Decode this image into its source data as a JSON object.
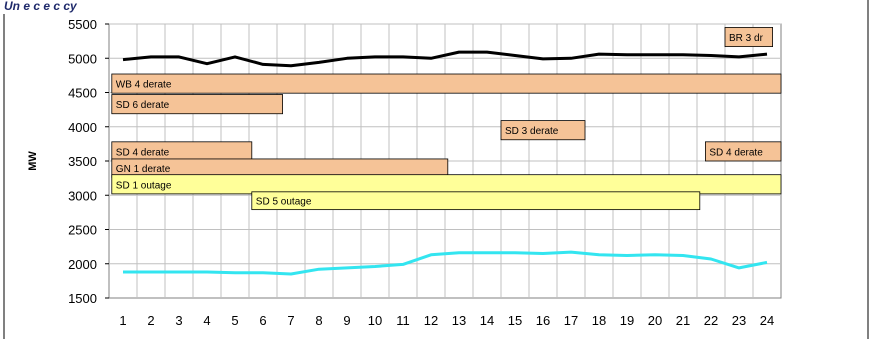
{
  "header_fragment": "Un  e  c  e  c  cy",
  "chart_data": {
    "type": "line",
    "ylabel": "MW",
    "ylim": [
      1500,
      5500
    ],
    "yticks": [
      1500,
      2000,
      2500,
      3000,
      3500,
      4000,
      4500,
      5000,
      5500
    ],
    "x": [
      1,
      2,
      3,
      4,
      5,
      6,
      7,
      8,
      9,
      10,
      11,
      12,
      13,
      14,
      15,
      16,
      17,
      18,
      19,
      20,
      21,
      22,
      23,
      24
    ],
    "grid": true,
    "series": [
      {
        "color": "#000000",
        "values": [
          4980,
          5020,
          5020,
          4920,
          5020,
          4910,
          4890,
          4940,
          5000,
          5020,
          5020,
          5000,
          5090,
          5090,
          5040,
          4990,
          5000,
          5060,
          5050,
          5050,
          5050,
          5040,
          5020,
          5060
        ]
      },
      {
        "color": "#33e5f0",
        "values": [
          1880,
          1880,
          1880,
          1880,
          1870,
          1870,
          1850,
          1920,
          1940,
          1960,
          1990,
          2130,
          2160,
          2160,
          2160,
          2150,
          2170,
          2130,
          2120,
          2130,
          2120,
          2070,
          1940,
          2020
        ]
      }
    ],
    "outage_bars": [
      {
        "label": "BR 3 dr",
        "x_start": 22.5,
        "x_end": 24.2,
        "y_bottom": 5170,
        "y_top": 5450,
        "color": "#f5c397"
      },
      {
        "label": "WB 4  derate",
        "x_start": 0.6,
        "x_end": 24.8,
        "y_bottom": 4490,
        "y_top": 4770,
        "color": "#f5c397"
      },
      {
        "label": "SD 6 derate",
        "x_start": 0.6,
        "x_end": 6.7,
        "y_bottom": 4190,
        "y_top": 4470,
        "color": "#f5c397"
      },
      {
        "label": "SD 3 derate",
        "x_start": 14.5,
        "x_end": 17.5,
        "y_bottom": 3810,
        "y_top": 4090,
        "color": "#f5c397"
      },
      {
        "label": "SD 4 derate",
        "x_start": 0.6,
        "x_end": 5.6,
        "y_bottom": 3500,
        "y_top": 3780,
        "color": "#f5c397"
      },
      {
        "label": "SD 4 derate",
        "x_start": 21.8,
        "x_end": 24.8,
        "y_bottom": 3500,
        "y_top": 3780,
        "color": "#f5c397"
      },
      {
        "label": "GN 1  derate",
        "x_start": 0.6,
        "x_end": 12.6,
        "y_bottom": 3260,
        "y_top": 3530,
        "color": "#f5c397"
      },
      {
        "label": "SD 1 outage",
        "x_start": 0.6,
        "x_end": 24.8,
        "y_bottom": 3020,
        "y_top": 3300,
        "color": "#ffff99"
      },
      {
        "label": "SD 5 outage",
        "x_start": 5.6,
        "x_end": 21.6,
        "y_bottom": 2790,
        "y_top": 3050,
        "color": "#ffff99"
      }
    ]
  }
}
